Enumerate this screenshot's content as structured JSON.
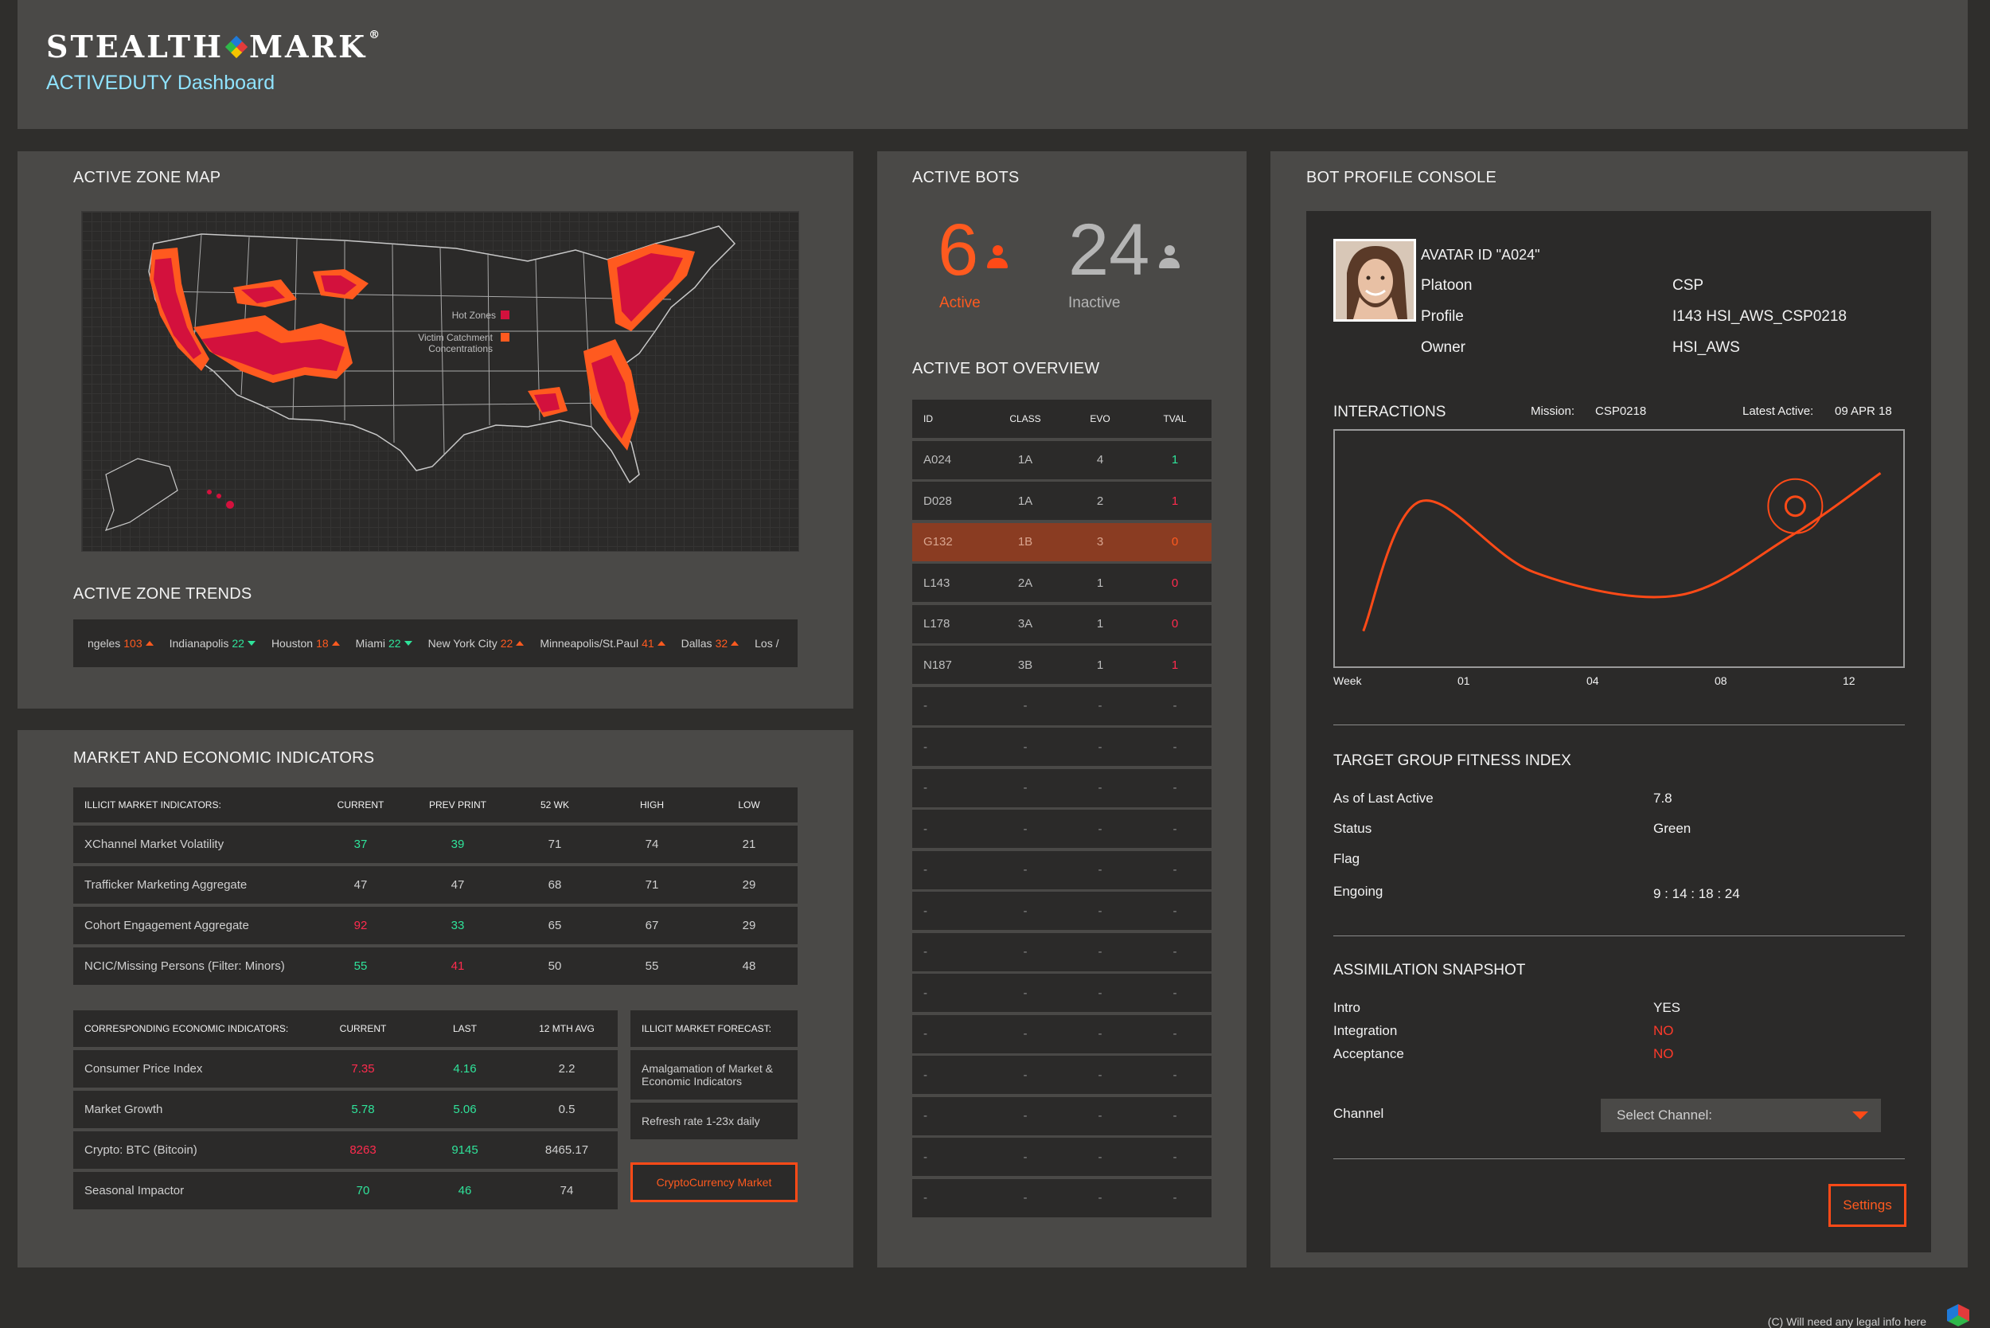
{
  "header": {
    "logo_left": "STEALTH",
    "logo_right": "MARK",
    "logo_tm": "®",
    "dashboard_title": "ACTIVEDUTY Dashboard"
  },
  "map": {
    "title": "ACTIVE ZONE MAP",
    "legend_hot": "Hot Zones",
    "legend_victim_1": "Victim Catchment",
    "legend_victim_2": "Concentrations",
    "hot_color": "#d3113d",
    "victim_color": "#ff5a1f"
  },
  "trends": {
    "title": "ACTIVE ZONE TRENDS",
    "items": [
      {
        "city": "ngeles",
        "value": "103",
        "dir": "up"
      },
      {
        "city": "Indianapolis",
        "value": "22",
        "dir": "down"
      },
      {
        "city": "Houston",
        "value": "18",
        "dir": "up"
      },
      {
        "city": "Miami",
        "value": "22",
        "dir": "down"
      },
      {
        "city": "New York City",
        "value": "22",
        "dir": "up"
      },
      {
        "city": "Minneapolis/St.Paul",
        "value": "41",
        "dir": "up"
      },
      {
        "city": "Dallas",
        "value": "32",
        "dir": "up"
      },
      {
        "city": "Los /",
        "value": "",
        "dir": ""
      }
    ]
  },
  "market": {
    "title": "MARKET AND ECONOMIC INDICATORS",
    "illicit": {
      "headers": [
        "ILLICIT MARKET INDICATORS:",
        "CURRENT",
        "PREV PRINT",
        "52 WK",
        "HIGH",
        "LOW"
      ],
      "rows": [
        {
          "label": "XChannel Market Volatility",
          "current": "37",
          "current_c": "green",
          "prev": "39",
          "prev_c": "green",
          "wk": "71",
          "high": "74",
          "low": "21"
        },
        {
          "label": "Trafficker Marketing Aggregate",
          "current": "47",
          "current_c": "",
          "prev": "47",
          "prev_c": "",
          "wk": "68",
          "high": "71",
          "low": "29"
        },
        {
          "label": "Cohort Engagement Aggregate",
          "current": "92",
          "current_c": "red",
          "prev": "33",
          "prev_c": "green",
          "wk": "65",
          "high": "67",
          "low": "29"
        },
        {
          "label": "NCIC/Missing Persons (Filter: Minors)",
          "current": "55",
          "current_c": "green",
          "prev": "41",
          "prev_c": "red",
          "wk": "50",
          "high": "55",
          "low": "48"
        }
      ]
    },
    "economic": {
      "headers": [
        "CORRESPONDING ECONOMIC INDICATORS:",
        "CURRENT",
        "LAST",
        "12 MTH AVG"
      ],
      "rows": [
        {
          "label": "Consumer Price Index",
          "current": "7.35",
          "current_c": "red",
          "last": "4.16",
          "last_c": "green",
          "avg": "2.2"
        },
        {
          "label": "Market Growth",
          "current": "5.78",
          "current_c": "green",
          "last": "5.06",
          "last_c": "green",
          "avg": "0.5"
        },
        {
          "label": "Crypto: BTC (Bitcoin)",
          "current": "8263",
          "current_c": "red",
          "last": "9145",
          "last_c": "green",
          "avg": "8465.17"
        },
        {
          "label": "Seasonal Impactor",
          "current": "70",
          "current_c": "green",
          "last": "46",
          "last_c": "green",
          "avg": "74"
        }
      ]
    },
    "forecast": {
      "header": "ILLICIT MARKET FORECAST:",
      "line1": "Amalgamation of Market &",
      "line2": "Economic Indicators",
      "refresh": "Refresh rate 1-23x daily",
      "button": "CryptoCurrency Market"
    }
  },
  "bots": {
    "title": "ACTIVE BOTS",
    "active_count": "6",
    "active_label": "Active",
    "inactive_count": "24",
    "inactive_label": "Inactive",
    "overview_title": "ACTIVE BOT OVERVIEW",
    "headers": [
      "ID",
      "CLASS",
      "EVO",
      "TVAL"
    ],
    "rows": [
      {
        "id": "A024",
        "cls": "1A",
        "evo": "4",
        "tval": "1",
        "tval_c": "green",
        "sel": false
      },
      {
        "id": "D028",
        "cls": "1A",
        "evo": "2",
        "tval": "1",
        "tval_c": "red",
        "sel": false
      },
      {
        "id": "G132",
        "cls": "1B",
        "evo": "3",
        "tval": "0",
        "tval_c": "orange",
        "sel": true
      },
      {
        "id": "L143",
        "cls": "2A",
        "evo": "1",
        "tval": "0",
        "tval_c": "red",
        "sel": false
      },
      {
        "id": "L178",
        "cls": "3A",
        "evo": "1",
        "tval": "0",
        "tval_c": "red",
        "sel": false
      },
      {
        "id": "N187",
        "cls": "3B",
        "evo": "1",
        "tval": "1",
        "tval_c": "red",
        "sel": false
      }
    ],
    "empty_rows": 13,
    "empty_mark": "-"
  },
  "profile": {
    "title": "BOT PROFILE CONSOLE",
    "avatar_id": "AVATAR ID \"A024\"",
    "platoon_label": "Platoon",
    "platoon_value": "CSP",
    "profile_label": "Profile",
    "profile_value": "I143 HSI_AWS_CSP0218",
    "owner_label": "Owner",
    "owner_value": "HSI_AWS",
    "interactions": {
      "title": "INTERACTIONS",
      "mission_label": "Mission:",
      "mission_value": "CSP0218",
      "latest_label": "Latest Active:",
      "latest_value": "09 APR 18",
      "x_labels": [
        "Week",
        "01",
        "04",
        "08",
        "12"
      ]
    },
    "fitness": {
      "title": "TARGET GROUP FITNESS INDEX",
      "last_active_label": "As of Last Active",
      "last_active_value": "7.8",
      "status_label": "Status",
      "status_value": "Green",
      "flag_label": "Flag",
      "engoing_label": "Engoing",
      "engoing_value": "9 : 14 : 18 : 24"
    },
    "assimilation": {
      "title": "ASSIMILATION SNAPSHOT",
      "intro_label": "Intro",
      "intro_value": "YES",
      "integration_label": "Integration",
      "integration_value": "NO",
      "acceptance_label": "Acceptance",
      "acceptance_value": "NO"
    },
    "channel_label": "Channel",
    "channel_placeholder": "Select Channel:",
    "settings_button": "Settings"
  },
  "footer": {
    "legal": "(C) Will need any legal info here"
  },
  "chart_data": {
    "type": "line",
    "title": "INTERACTIONS",
    "x_ticks": [
      "Week",
      "01",
      "04",
      "08",
      "12"
    ],
    "series": [
      {
        "values": [
          [
            0.5,
            0.15
          ],
          [
            1.5,
            0.7
          ],
          [
            3.5,
            0.4
          ],
          [
            6,
            0.3
          ],
          [
            8,
            0.55
          ],
          [
            9.6,
            0.82
          ]
        ]
      }
    ],
    "highlight_point": [
      8.1,
      0.68
    ],
    "color": "#ff4a17"
  }
}
